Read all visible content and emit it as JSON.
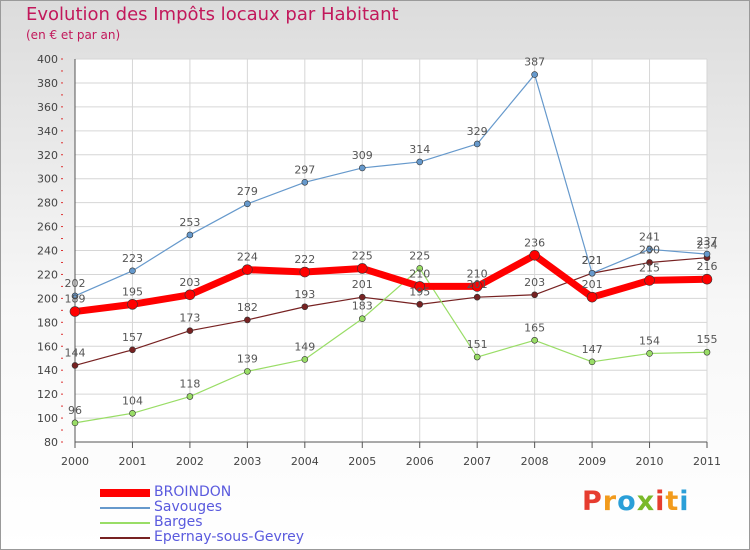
{
  "chart_data": {
    "type": "line",
    "title": "Evolution des Impôts locaux par Habitant",
    "subtitle": "(en € et par an)",
    "categories": [
      "2000",
      "2001",
      "2002",
      "2003",
      "2004",
      "2005",
      "2006",
      "2007",
      "2008",
      "2009",
      "2010",
      "2011"
    ],
    "ylim": [
      80,
      400
    ],
    "yticks": [
      80,
      100,
      120,
      140,
      160,
      180,
      200,
      220,
      240,
      260,
      280,
      300,
      320,
      340,
      360,
      380,
      400
    ],
    "grid": true,
    "legend_position": "bottom-left",
    "series": [
      {
        "name": "BROINDON",
        "color": "#ff0000",
        "values": [
          189,
          195,
          203,
          224,
          222,
          225,
          210,
          210,
          236,
          201,
          215,
          216
        ]
      },
      {
        "name": "Savouges",
        "color": "#6699cc",
        "values": [
          202,
          223,
          253,
          279,
          297,
          309,
          314,
          329,
          387,
          221,
          241,
          237
        ]
      },
      {
        "name": "Barges",
        "color": "#99dd66",
        "values": [
          96,
          104,
          118,
          139,
          149,
          183,
          225,
          151,
          165,
          147,
          154,
          155
        ]
      },
      {
        "name": "Epernay-sous-Gevrey",
        "color": "#772222",
        "values": [
          144,
          157,
          173,
          182,
          193,
          201,
          195,
          201,
          203,
          221,
          230,
          234
        ]
      }
    ]
  },
  "logo": {
    "text": "Proxiti",
    "colors": [
      "#e63c2f",
      "#f29b1c",
      "#2a9fd8",
      "#7ab929",
      "#e63c2f",
      "#f29b1c",
      "#2a9fd8"
    ]
  }
}
